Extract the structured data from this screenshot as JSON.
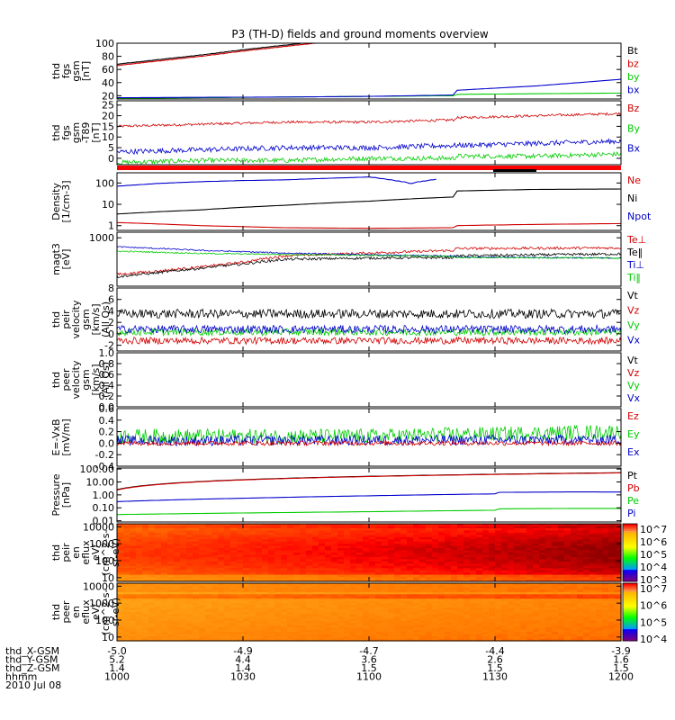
{
  "title": "P3 (TH-D) fields and ground moments overview",
  "colors": {
    "black": "#000000",
    "red": "#d00000",
    "green": "#00cc00",
    "blue": "#0000cc",
    "dark_red": "#800000"
  },
  "chart_data": [
    {
      "type": "line",
      "id": "fgs_gsm",
      "ylabel": [
        "thd",
        "fgs",
        "gsm",
        "[nT]"
      ],
      "ylim": [
        15,
        100
      ],
      "yticks": [
        "100",
        "80",
        "60",
        "40",
        "20"
      ],
      "ytick_values": [
        100,
        80,
        60,
        40,
        20
      ],
      "legend": [
        {
          "label": "Bt",
          "color": "#000000"
        },
        {
          "label": "bz",
          "color": "#d00000"
        },
        {
          "label": "by",
          "color": "#00cc00"
        },
        {
          "label": "bx",
          "color": "#0000cc"
        }
      ],
      "series": [
        {
          "name": "Bt",
          "color": "#000000",
          "x": [
            1000,
            1010,
            1020,
            1030,
            1040,
            1050
          ],
          "y": [
            68,
            75,
            82,
            90,
            97,
            104
          ],
          "offset": 1.5
        },
        {
          "name": "bz",
          "color": "#d00000",
          "x": [
            1000,
            1010,
            1020,
            1030,
            1040,
            1050
          ],
          "y": [
            66,
            73,
            80,
            88,
            95,
            102
          ]
        },
        {
          "name": "by",
          "color": "#00cc00",
          "x": [
            1000,
            1020,
            1040,
            1060,
            1080,
            1100,
            1120,
            1140,
            1160,
            1180,
            1200
          ],
          "y": [
            16,
            17,
            18,
            19,
            20,
            21,
            22,
            23,
            24,
            25,
            26
          ]
        },
        {
          "name": "bx",
          "color": "#0000cc",
          "x": [
            1000,
            1020,
            1040,
            1060,
            1080,
            1100,
            1120,
            1140,
            1160,
            1180,
            1200
          ],
          "y": [
            17,
            17.5,
            18,
            19,
            21,
            24,
            28,
            35,
            45,
            58,
            78
          ]
        }
      ]
    },
    {
      "type": "line",
      "id": "fgs_gsm_t89",
      "ylabel": [
        "thd",
        "fgs",
        "gsm",
        "-T89",
        "[nT]"
      ],
      "ylim": [
        -3,
        27
      ],
      "yticks": [
        "25",
        "20",
        "15",
        "10",
        "5",
        "0"
      ],
      "ytick_values": [
        25,
        20,
        15,
        10,
        5,
        0
      ],
      "legend": [
        {
          "label": "Bz",
          "color": "#d00000"
        },
        {
          "label": "By",
          "color": "#00cc00"
        },
        {
          "label": "Bx",
          "color": "#0000cc"
        }
      ],
      "series": [
        {
          "name": "Bz",
          "color": "#d00000",
          "x": [
            1000,
            1020,
            1040,
            1060,
            1080,
            1100,
            1120,
            1140,
            1160,
            1180,
            1200
          ],
          "y": [
            15,
            16,
            17,
            17,
            18,
            18,
            19,
            20,
            21,
            22,
            22
          ],
          "noise": 0.6
        },
        {
          "name": "By",
          "color": "#00cc00",
          "x": [
            1000,
            1020,
            1040,
            1060,
            1080,
            1100,
            1120,
            1140,
            1160,
            1180,
            1200
          ],
          "y": [
            -2,
            -1,
            -1,
            0,
            0,
            0,
            1,
            1,
            2,
            3,
            5
          ],
          "noise": 1.1
        },
        {
          "name": "Bx",
          "color": "#0000cc",
          "x": [
            1000,
            1020,
            1040,
            1060,
            1080,
            1100,
            1120,
            1140,
            1160,
            1180,
            1200
          ],
          "y": [
            3,
            4,
            5,
            5,
            6,
            6,
            6,
            7,
            8,
            8,
            7
          ],
          "noise": 1.2
        }
      ]
    },
    {
      "type": "line",
      "id": "density",
      "log": true,
      "ylabel": [
        "Density",
        "[1/cm-3]"
      ],
      "ylim": [
        0.6,
        300
      ],
      "yticks": [
        "100",
        "10",
        "1"
      ],
      "ytick_values": [
        100,
        10,
        1
      ],
      "legend": [
        {
          "label": "Ne",
          "color": "#d00000"
        },
        {
          "label": "Ni",
          "color": "#000000"
        },
        {
          "label": "Npot",
          "color": "#0000cc"
        }
      ],
      "series": [
        {
          "name": "Ni",
          "color": "#000000",
          "x": [
            1000,
            1020,
            1040,
            1060,
            1080,
            1100,
            1120,
            1140,
            1160,
            1180,
            1200
          ],
          "y": [
            3.5,
            5.5,
            9,
            14,
            22,
            32,
            42,
            50,
            52,
            42,
            25
          ]
        },
        {
          "name": "Ne",
          "color": "#d00000",
          "x": [
            1000,
            1020,
            1040,
            1060,
            1080,
            1100,
            1120,
            1140,
            1160,
            1180,
            1200
          ],
          "y": [
            1.4,
            1.0,
            0.8,
            0.75,
            0.8,
            0.9,
            1.0,
            1.15,
            1.25,
            1.2,
            1.0
          ]
        },
        {
          "name": "Npot",
          "color": "#0000cc",
          "x": [
            1000,
            1010,
            1020,
            1030,
            1040,
            1050,
            1060,
            1070,
            1076
          ],
          "y": [
            70,
            95,
            115,
            130,
            140,
            165,
            190,
            95,
            150
          ]
        }
      ]
    },
    {
      "type": "line",
      "id": "temperature",
      "log": true,
      "ylabel": [
        "magt3",
        "[eV]"
      ],
      "ylim": [
        30,
        1500
      ],
      "yticks": [
        "1000"
      ],
      "ytick_values": [
        1000
      ],
      "legend": [
        {
          "label": "Te⊥",
          "color": "#d00000"
        },
        {
          "label": "Te‖",
          "color": "#000000"
        },
        {
          "label": "Ti⊥",
          "color": "#0000cc"
        },
        {
          "label": "Ti‖",
          "color": "#00cc00"
        }
      ],
      "series": [
        {
          "name": "Te⊥",
          "color": "#d00000",
          "x": [
            1000,
            1010,
            1020,
            1030,
            1040,
            1060,
            1080,
            1100,
            1120,
            1140,
            1160,
            1180,
            1200
          ],
          "y": [
            70,
            90,
            120,
            170,
            270,
            330,
            400,
            450,
            460,
            470,
            480,
            490,
            500
          ],
          "noise": 0.04
        },
        {
          "name": "Te‖",
          "color": "#000000",
          "x": [
            1000,
            1010,
            1020,
            1030,
            1040,
            1060,
            1080,
            1100,
            1120,
            1140,
            1160,
            1180,
            1200
          ],
          "y": [
            60,
            80,
            110,
            150,
            210,
            230,
            240,
            250,
            270,
            290,
            310,
            320,
            330
          ],
          "noise": 0.04
        },
        {
          "name": "Ti⊥",
          "color": "#0000cc",
          "x": [
            1000,
            1020,
            1040,
            1060,
            1080,
            1100,
            1120,
            1140,
            1160,
            1180,
            1200
          ],
          "y": [
            520,
            400,
            330,
            290,
            270,
            260,
            250,
            240,
            230,
            220,
            210
          ],
          "noise": 0.02
        },
        {
          "name": "Ti‖",
          "color": "#00cc00",
          "x": [
            1000,
            1020,
            1040,
            1060,
            1080,
            1100,
            1120,
            1140,
            1160,
            1180,
            1200
          ],
          "y": [
            380,
            320,
            300,
            280,
            260,
            250,
            240,
            235,
            230,
            225,
            220
          ],
          "noise": 0.02
        }
      ]
    },
    {
      "type": "line",
      "id": "peir_velocity",
      "ylabel": [
        "thd",
        "peir",
        "velocity",
        "gsm",
        "[km/s]",
        "(All Qs)"
      ],
      "ylim": [
        -3,
        8
      ],
      "yticks": [
        "8",
        "6",
        "4",
        "2",
        "0",
        "-2"
      ],
      "ytick_values": [
        8,
        6,
        4,
        2,
        0,
        -2
      ],
      "legend": [
        {
          "label": "Vt",
          "color": "#000000"
        },
        {
          "label": "Vz",
          "color": "#d00000"
        },
        {
          "label": "Vy",
          "color": "#00cc00"
        },
        {
          "label": "Vx",
          "color": "#0000cc"
        }
      ],
      "series": [
        {
          "name": "Vt",
          "color": "#000000",
          "x": [
            1000,
            1200
          ],
          "y": [
            3.5,
            3.5
          ],
          "noise": 0.8
        },
        {
          "name": "Vy",
          "color": "#00cc00",
          "x": [
            1000,
            1200
          ],
          "y": [
            0.3,
            0.3
          ],
          "noise": 0.6
        },
        {
          "name": "Vx",
          "color": "#0000cc",
          "x": [
            1000,
            1200
          ],
          "y": [
            0.8,
            0.8
          ],
          "noise": 0.7
        },
        {
          "name": "Vz",
          "color": "#d00000",
          "x": [
            1000,
            1200
          ],
          "y": [
            -1.2,
            -1.2
          ],
          "noise": 0.6
        }
      ]
    },
    {
      "type": "line",
      "id": "peer_velocity",
      "ylabel": [
        "thd",
        "peer",
        "velocity",
        "gsm",
        "[km/s]",
        "(All Qs)"
      ],
      "ylim": [
        0,
        1
      ],
      "yticks": [
        "1.0",
        "0.8",
        "0.6",
        "0.4",
        "0.2",
        "0.0"
      ],
      "ytick_values": [
        1,
        0.8,
        0.6,
        0.4,
        0.2,
        0
      ],
      "legend": [
        {
          "label": "Vt",
          "color": "#000000"
        },
        {
          "label": "Vz",
          "color": "#d00000"
        },
        {
          "label": "Vy",
          "color": "#00cc00"
        },
        {
          "label": "Vx",
          "color": "#0000cc"
        }
      ],
      "series": []
    },
    {
      "type": "line",
      "id": "efield",
      "ylabel": [
        "E=-VxB",
        "[mV/m]"
      ],
      "ylim": [
        -0.4,
        0.6
      ],
      "yticks": [
        "0.6",
        "0.4",
        "0.2",
        "0.0",
        "-0.2",
        "-0.4"
      ],
      "ytick_values": [
        0.6,
        0.4,
        0.2,
        0,
        -0.2,
        -0.4
      ],
      "legend": [
        {
          "label": "Ez",
          "color": "#d00000"
        },
        {
          "label": "Ey",
          "color": "#00cc00"
        },
        {
          "label": "Ex",
          "color": "#0000cc"
        }
      ],
      "series": [
        {
          "name": "Ey",
          "color": "#00cc00",
          "x": [
            1000,
            1100,
            1200
          ],
          "y": [
            0.12,
            0.12,
            0.2
          ],
          "noise": 0.13
        },
        {
          "name": "Ex",
          "color": "#0000cc",
          "x": [
            1000,
            1200
          ],
          "y": [
            0.04,
            0.06
          ],
          "noise": 0.09
        },
        {
          "name": "Ez",
          "color": "#d00000",
          "x": [
            1000,
            1200
          ],
          "y": [
            0.0,
            0.0
          ],
          "noise": 0.04
        }
      ]
    },
    {
      "type": "line",
      "id": "pressure",
      "log": true,
      "ylabel": [
        "Pressure",
        "[nPa]"
      ],
      "ylim": [
        0.008,
        120
      ],
      "yticks": [
        "100.00",
        "10.00",
        "1.00",
        "0.10",
        "0.01"
      ],
      "ytick_values": [
        100,
        10,
        1,
        0.1,
        0.01
      ],
      "legend": [
        {
          "label": "Pt",
          "color": "#000000"
        },
        {
          "label": "Pb",
          "color": "#d00000"
        },
        {
          "label": "Pe",
          "color": "#00cc00"
        },
        {
          "label": "Pi",
          "color": "#0000cc"
        }
      ],
      "series": [
        {
          "name": "Pt",
          "color": "#000000",
          "x": [
            1000,
            1200
          ],
          "y": [
            2.6,
            52
          ]
        },
        {
          "name": "Pb",
          "color": "#d00000",
          "x": [
            1000,
            1200
          ],
          "y": [
            2.4,
            50
          ]
        },
        {
          "name": "Pi",
          "color": "#0000cc",
          "x": [
            1000,
            1030,
            1060,
            1090,
            1120,
            1150,
            1170,
            1190,
            1200
          ],
          "y": [
            0.3,
            0.55,
            0.85,
            1.2,
            1.5,
            1.7,
            1.6,
            1.4,
            1.2
          ]
        },
        {
          "name": "Pe",
          "color": "#00cc00",
          "x": [
            1000,
            1030,
            1060,
            1090,
            1120,
            1150,
            1170,
            1190,
            1200
          ],
          "y": [
            0.03,
            0.04,
            0.05,
            0.065,
            0.08,
            0.09,
            0.09,
            0.08,
            0.07
          ]
        }
      ]
    },
    {
      "type": "heatmap",
      "id": "peir_eflux",
      "log": true,
      "ylabel": [
        "thd",
        "peir",
        "en",
        "eflux",
        "eV/",
        "(cm^2-s-",
        "sr-eV)"
      ],
      "ylim": [
        6,
        15000
      ],
      "yticks": [
        "10000",
        "1000",
        "100",
        "10"
      ],
      "ytick_values": [
        10000,
        1000,
        100,
        10
      ],
      "colorbar": {
        "labels": [
          "10^7",
          "10^6",
          "10^5",
          "10^4",
          "10^3"
        ],
        "min": 3,
        "max": 7.2
      }
    },
    {
      "type": "heatmap",
      "id": "peer_eflux",
      "log": true,
      "ylabel": [
        "thd",
        "peer",
        "en",
        "eflux",
        "eV/",
        "(cm^2-s-",
        "sr-eV)"
      ],
      "ylim": [
        6,
        15000
      ],
      "yticks": [
        "10000",
        "1000",
        "100",
        "10"
      ],
      "ytick_values": [
        10000,
        1000,
        100,
        10
      ],
      "colorbar": {
        "labels": [
          "10^7",
          "10^6",
          "10^5",
          "10^4"
        ],
        "min": 3.8,
        "max": 7.3
      }
    }
  ],
  "xaxis": {
    "rows": [
      {
        "label": "thd_X-GSM",
        "values": [
          "-5.0",
          "-4.9",
          "-4.7",
          "-4.4",
          "-3.9"
        ]
      },
      {
        "label": "thd_Y-GSM",
        "values": [
          "5.2",
          "4.4",
          "3.6",
          "2.6",
          "1.6"
        ]
      },
      {
        "label": "thd_Z-GSM",
        "values": [
          "1.4",
          "1.4",
          "1.5",
          "1.5",
          "1.5"
        ]
      },
      {
        "label": "hhmm",
        "values": [
          "1000",
          "1030",
          "1100",
          "1130",
          "1200"
        ]
      }
    ],
    "date": "2010 Jul 08",
    "tick_times": [
      1000,
      1030,
      1100,
      1130,
      1200
    ]
  }
}
